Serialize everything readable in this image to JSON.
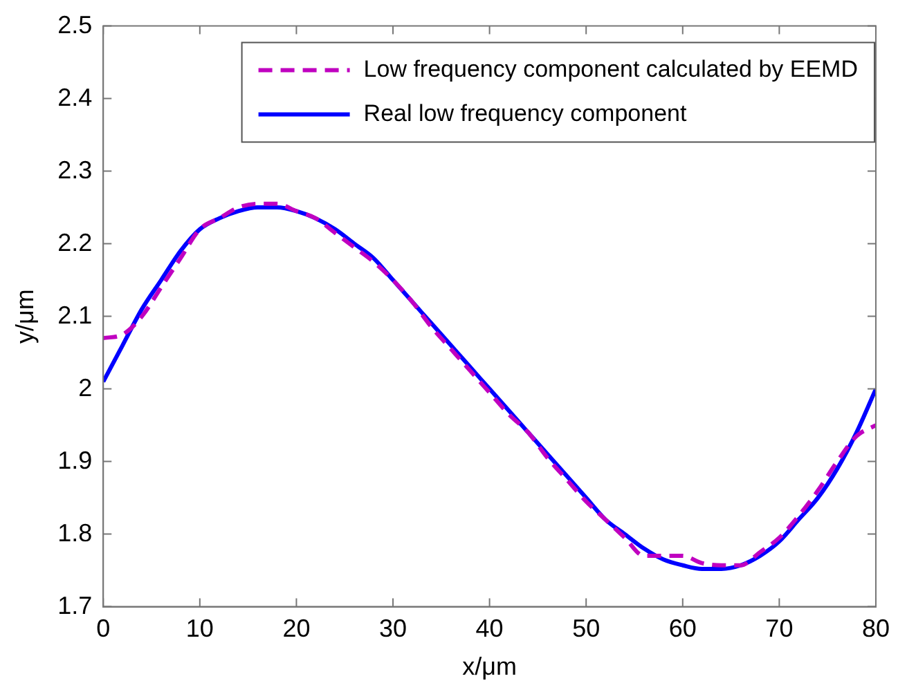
{
  "chart_data": {
    "type": "line",
    "xlabel": "x/μm",
    "ylabel": "y/μm",
    "x": [
      0,
      2,
      4,
      6,
      8,
      10,
      12,
      14,
      16,
      18,
      20,
      22,
      24,
      26,
      28,
      30,
      32,
      34,
      36,
      38,
      40,
      42,
      44,
      46,
      48,
      50,
      52,
      54,
      56,
      58,
      60,
      62,
      64,
      66,
      68,
      70,
      72,
      74,
      76,
      78,
      80
    ],
    "series": [
      {
        "name": "Low frequency component calculated by EEMD",
        "color": "#c000c0",
        "line_style": "dashed",
        "values": [
          2.07,
          2.075,
          2.1,
          2.14,
          2.18,
          2.22,
          2.235,
          2.25,
          2.255,
          2.255,
          2.245,
          2.235,
          2.215,
          2.195,
          2.175,
          2.15,
          2.12,
          2.085,
          2.055,
          2.025,
          1.995,
          1.965,
          1.94,
          1.905,
          1.875,
          1.845,
          1.82,
          1.795,
          1.77,
          1.77,
          1.77,
          1.76,
          1.757,
          1.757,
          1.775,
          1.795,
          1.825,
          1.86,
          1.9,
          1.935,
          1.95
        ]
      },
      {
        "name": "Real low frequency component",
        "color": "#0000ff",
        "line_style": "solid",
        "values": [
          2.01,
          2.06,
          2.11,
          2.15,
          2.19,
          2.22,
          2.235,
          2.245,
          2.25,
          2.25,
          2.245,
          2.235,
          2.22,
          2.2,
          2.18,
          2.15,
          2.12,
          2.09,
          2.06,
          2.03,
          2.0,
          1.97,
          1.94,
          1.91,
          1.88,
          1.85,
          1.82,
          1.8,
          1.78,
          1.765,
          1.757,
          1.752,
          1.752,
          1.757,
          1.77,
          1.79,
          1.82,
          1.85,
          1.89,
          1.94,
          2.0
        ]
      }
    ],
    "xlim": [
      0,
      80
    ],
    "xticks": [
      0,
      10,
      20,
      30,
      40,
      50,
      60,
      70,
      80
    ],
    "ylim": [
      1.7,
      2.5
    ],
    "yticks": [
      1.7,
      1.8,
      1.9,
      2,
      2.1,
      2.2,
      2.3,
      2.4,
      2.5
    ],
    "grid": false,
    "legend": "top right",
    "marker": "none"
  }
}
